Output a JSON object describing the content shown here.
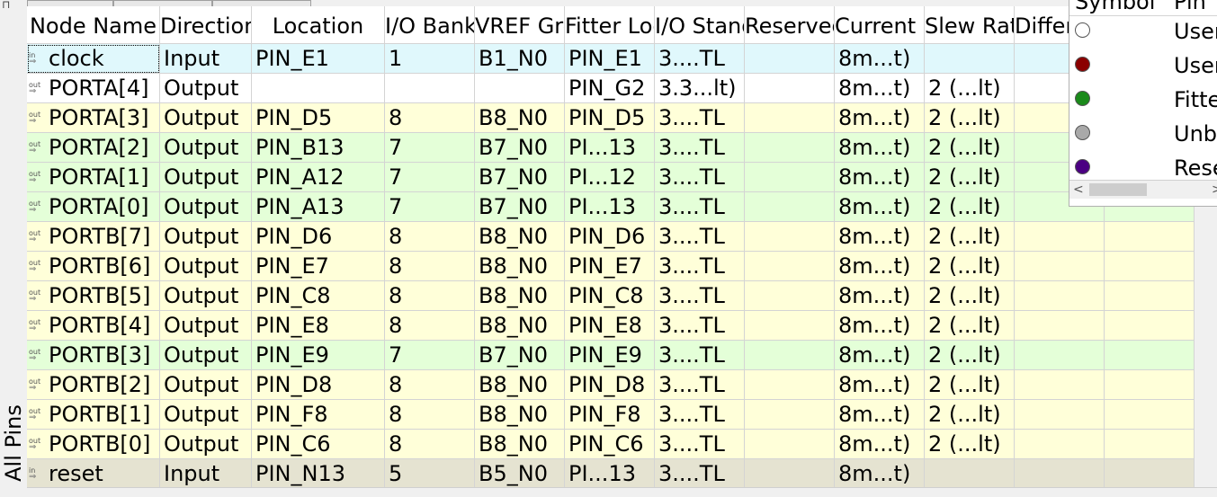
{
  "window": {
    "side_tab_label": "All Pins"
  },
  "colors": {
    "row_input": "#e0f8fc",
    "row_unassigned": "#ffffff",
    "row_bank8": "#ffffd9",
    "row_bank7": "#e4ffd8",
    "row_reset": "#e5e3d1",
    "legend_user_assigned": "#ffffff",
    "legend_user_assigned_2": "#8b0000",
    "legend_fitter": "#1a8a1a",
    "legend_unbonded": "#a9a9a9",
    "legend_reserved": "#4b0082"
  },
  "columns": [
    "Node Name",
    "Direction",
    "Location",
    "I/O Bank",
    "VREF Group",
    "Fitter Location",
    "I/O Standard",
    "Reserved",
    "Current Strength",
    "Slew Rate",
    "Differential Pair",
    ""
  ],
  "rows": [
    {
      "icon": "input-icon",
      "icon_text": "in",
      "node": "clock",
      "direction": "Input",
      "location": "PIN_E1",
      "bank": "1",
      "vref": "B1_N0",
      "fitter": "PIN_E1",
      "standard": "3....TL",
      "reserved": "",
      "current": "8m...t)",
      "slew": "",
      "diff": "",
      "extra": "",
      "bg": "row_input"
    },
    {
      "icon": "output-icon",
      "icon_text": "out",
      "node": "PORTA[4]",
      "direction": "Output",
      "location": "",
      "bank": "",
      "vref": "",
      "fitter": "PIN_G2",
      "standard": "3.3...lt)",
      "reserved": "",
      "current": "8m...t)",
      "slew": "2 (...lt)",
      "diff": "",
      "extra": "",
      "bg": "row_unassigned"
    },
    {
      "icon": "output-icon",
      "icon_text": "out",
      "node": "PORTA[3]",
      "direction": "Output",
      "location": "PIN_D5",
      "bank": "8",
      "vref": "B8_N0",
      "fitter": "PIN_D5",
      "standard": "3....TL",
      "reserved": "",
      "current": "8m...t)",
      "slew": "2 (...lt)",
      "diff": "",
      "extra": "",
      "bg": "row_bank8"
    },
    {
      "icon": "output-icon",
      "icon_text": "out",
      "node": "PORTA[2]",
      "direction": "Output",
      "location": "PIN_B13",
      "bank": "7",
      "vref": "B7_N0",
      "fitter": "PI...13",
      "standard": "3....TL",
      "reserved": "",
      "current": "8m...t)",
      "slew": "2 (...lt)",
      "diff": "",
      "extra": "",
      "bg": "row_bank7"
    },
    {
      "icon": "output-icon",
      "icon_text": "out",
      "node": "PORTA[1]",
      "direction": "Output",
      "location": "PIN_A12",
      "bank": "7",
      "vref": "B7_N0",
      "fitter": "PI...12",
      "standard": "3....TL",
      "reserved": "",
      "current": "8m...t)",
      "slew": "2 (...lt)",
      "diff": "",
      "extra": "",
      "bg": "row_bank7"
    },
    {
      "icon": "output-icon",
      "icon_text": "out",
      "node": "PORTA[0]",
      "direction": "Output",
      "location": "PIN_A13",
      "bank": "7",
      "vref": "B7_N0",
      "fitter": "PI...13",
      "standard": "3....TL",
      "reserved": "",
      "current": "8m...t)",
      "slew": "2 (...lt)",
      "diff": "",
      "extra": "",
      "bg": "row_bank7"
    },
    {
      "icon": "output-icon",
      "icon_text": "out",
      "node": "PORTB[7]",
      "direction": "Output",
      "location": "PIN_D6",
      "bank": "8",
      "vref": "B8_N0",
      "fitter": "PIN_D6",
      "standard": "3....TL",
      "reserved": "",
      "current": "8m...t)",
      "slew": "2 (...lt)",
      "diff": "",
      "extra": "",
      "bg": "row_bank8"
    },
    {
      "icon": "output-icon",
      "icon_text": "out",
      "node": "PORTB[6]",
      "direction": "Output",
      "location": "PIN_E7",
      "bank": "8",
      "vref": "B8_N0",
      "fitter": "PIN_E7",
      "standard": "3....TL",
      "reserved": "",
      "current": "8m...t)",
      "slew": "2 (...lt)",
      "diff": "",
      "extra": "",
      "bg": "row_bank8"
    },
    {
      "icon": "output-icon",
      "icon_text": "out",
      "node": "PORTB[5]",
      "direction": "Output",
      "location": "PIN_C8",
      "bank": "8",
      "vref": "B8_N0",
      "fitter": "PIN_C8",
      "standard": "3....TL",
      "reserved": "",
      "current": "8m...t)",
      "slew": "2 (...lt)",
      "diff": "",
      "extra": "",
      "bg": "row_bank8"
    },
    {
      "icon": "output-icon",
      "icon_text": "out",
      "node": "PORTB[4]",
      "direction": "Output",
      "location": "PIN_E8",
      "bank": "8",
      "vref": "B8_N0",
      "fitter": "PIN_E8",
      "standard": "3....TL",
      "reserved": "",
      "current": "8m...t)",
      "slew": "2 (...lt)",
      "diff": "",
      "extra": "",
      "bg": "row_bank8"
    },
    {
      "icon": "output-icon",
      "icon_text": "out",
      "node": "PORTB[3]",
      "direction": "Output",
      "location": "PIN_E9",
      "bank": "7",
      "vref": "B7_N0",
      "fitter": "PIN_E9",
      "standard": "3....TL",
      "reserved": "",
      "current": "8m...t)",
      "slew": "2 (...lt)",
      "diff": "",
      "extra": "",
      "bg": "row_bank7"
    },
    {
      "icon": "output-icon",
      "icon_text": "out",
      "node": "PORTB[2]",
      "direction": "Output",
      "location": "PIN_D8",
      "bank": "8",
      "vref": "B8_N0",
      "fitter": "PIN_D8",
      "standard": "3....TL",
      "reserved": "",
      "current": "8m...t)",
      "slew": "2 (...lt)",
      "diff": "",
      "extra": "",
      "bg": "row_bank8"
    },
    {
      "icon": "output-icon",
      "icon_text": "out",
      "node": "PORTB[1]",
      "direction": "Output",
      "location": "PIN_F8",
      "bank": "8",
      "vref": "B8_N0",
      "fitter": "PIN_F8",
      "standard": "3....TL",
      "reserved": "",
      "current": "8m...t)",
      "slew": "2 (...lt)",
      "diff": "",
      "extra": "",
      "bg": "row_bank8"
    },
    {
      "icon": "output-icon",
      "icon_text": "out",
      "node": "PORTB[0]",
      "direction": "Output",
      "location": "PIN_C6",
      "bank": "8",
      "vref": "B8_N0",
      "fitter": "PIN_C6",
      "standard": "3....TL",
      "reserved": "",
      "current": "8m...t)",
      "slew": "2 (...lt)",
      "diff": "",
      "extra": "",
      "bg": "row_bank8"
    },
    {
      "icon": "input-icon",
      "icon_text": "in",
      "node": "reset",
      "direction": "Input",
      "location": "PIN_N13",
      "bank": "5",
      "vref": "B5_N0",
      "fitter": "PI...13",
      "standard": "3....TL",
      "reserved": "",
      "current": "8m...t)",
      "slew": "",
      "diff": "",
      "extra": "",
      "bg": "row_reset"
    }
  ],
  "legend": {
    "headers": [
      "Symbol",
      "Pin"
    ],
    "items": [
      {
        "text": "User",
        "color": "legend_user_assigned"
      },
      {
        "text": "User",
        "color": "legend_user_assigned_2"
      },
      {
        "text": "Fitte",
        "color": "legend_fitter"
      },
      {
        "text": "Unb",
        "color": "legend_unbonded"
      },
      {
        "text": "Rese",
        "color": "legend_reserved"
      }
    ],
    "scroll_left": "<",
    "scroll_right": ">"
  }
}
